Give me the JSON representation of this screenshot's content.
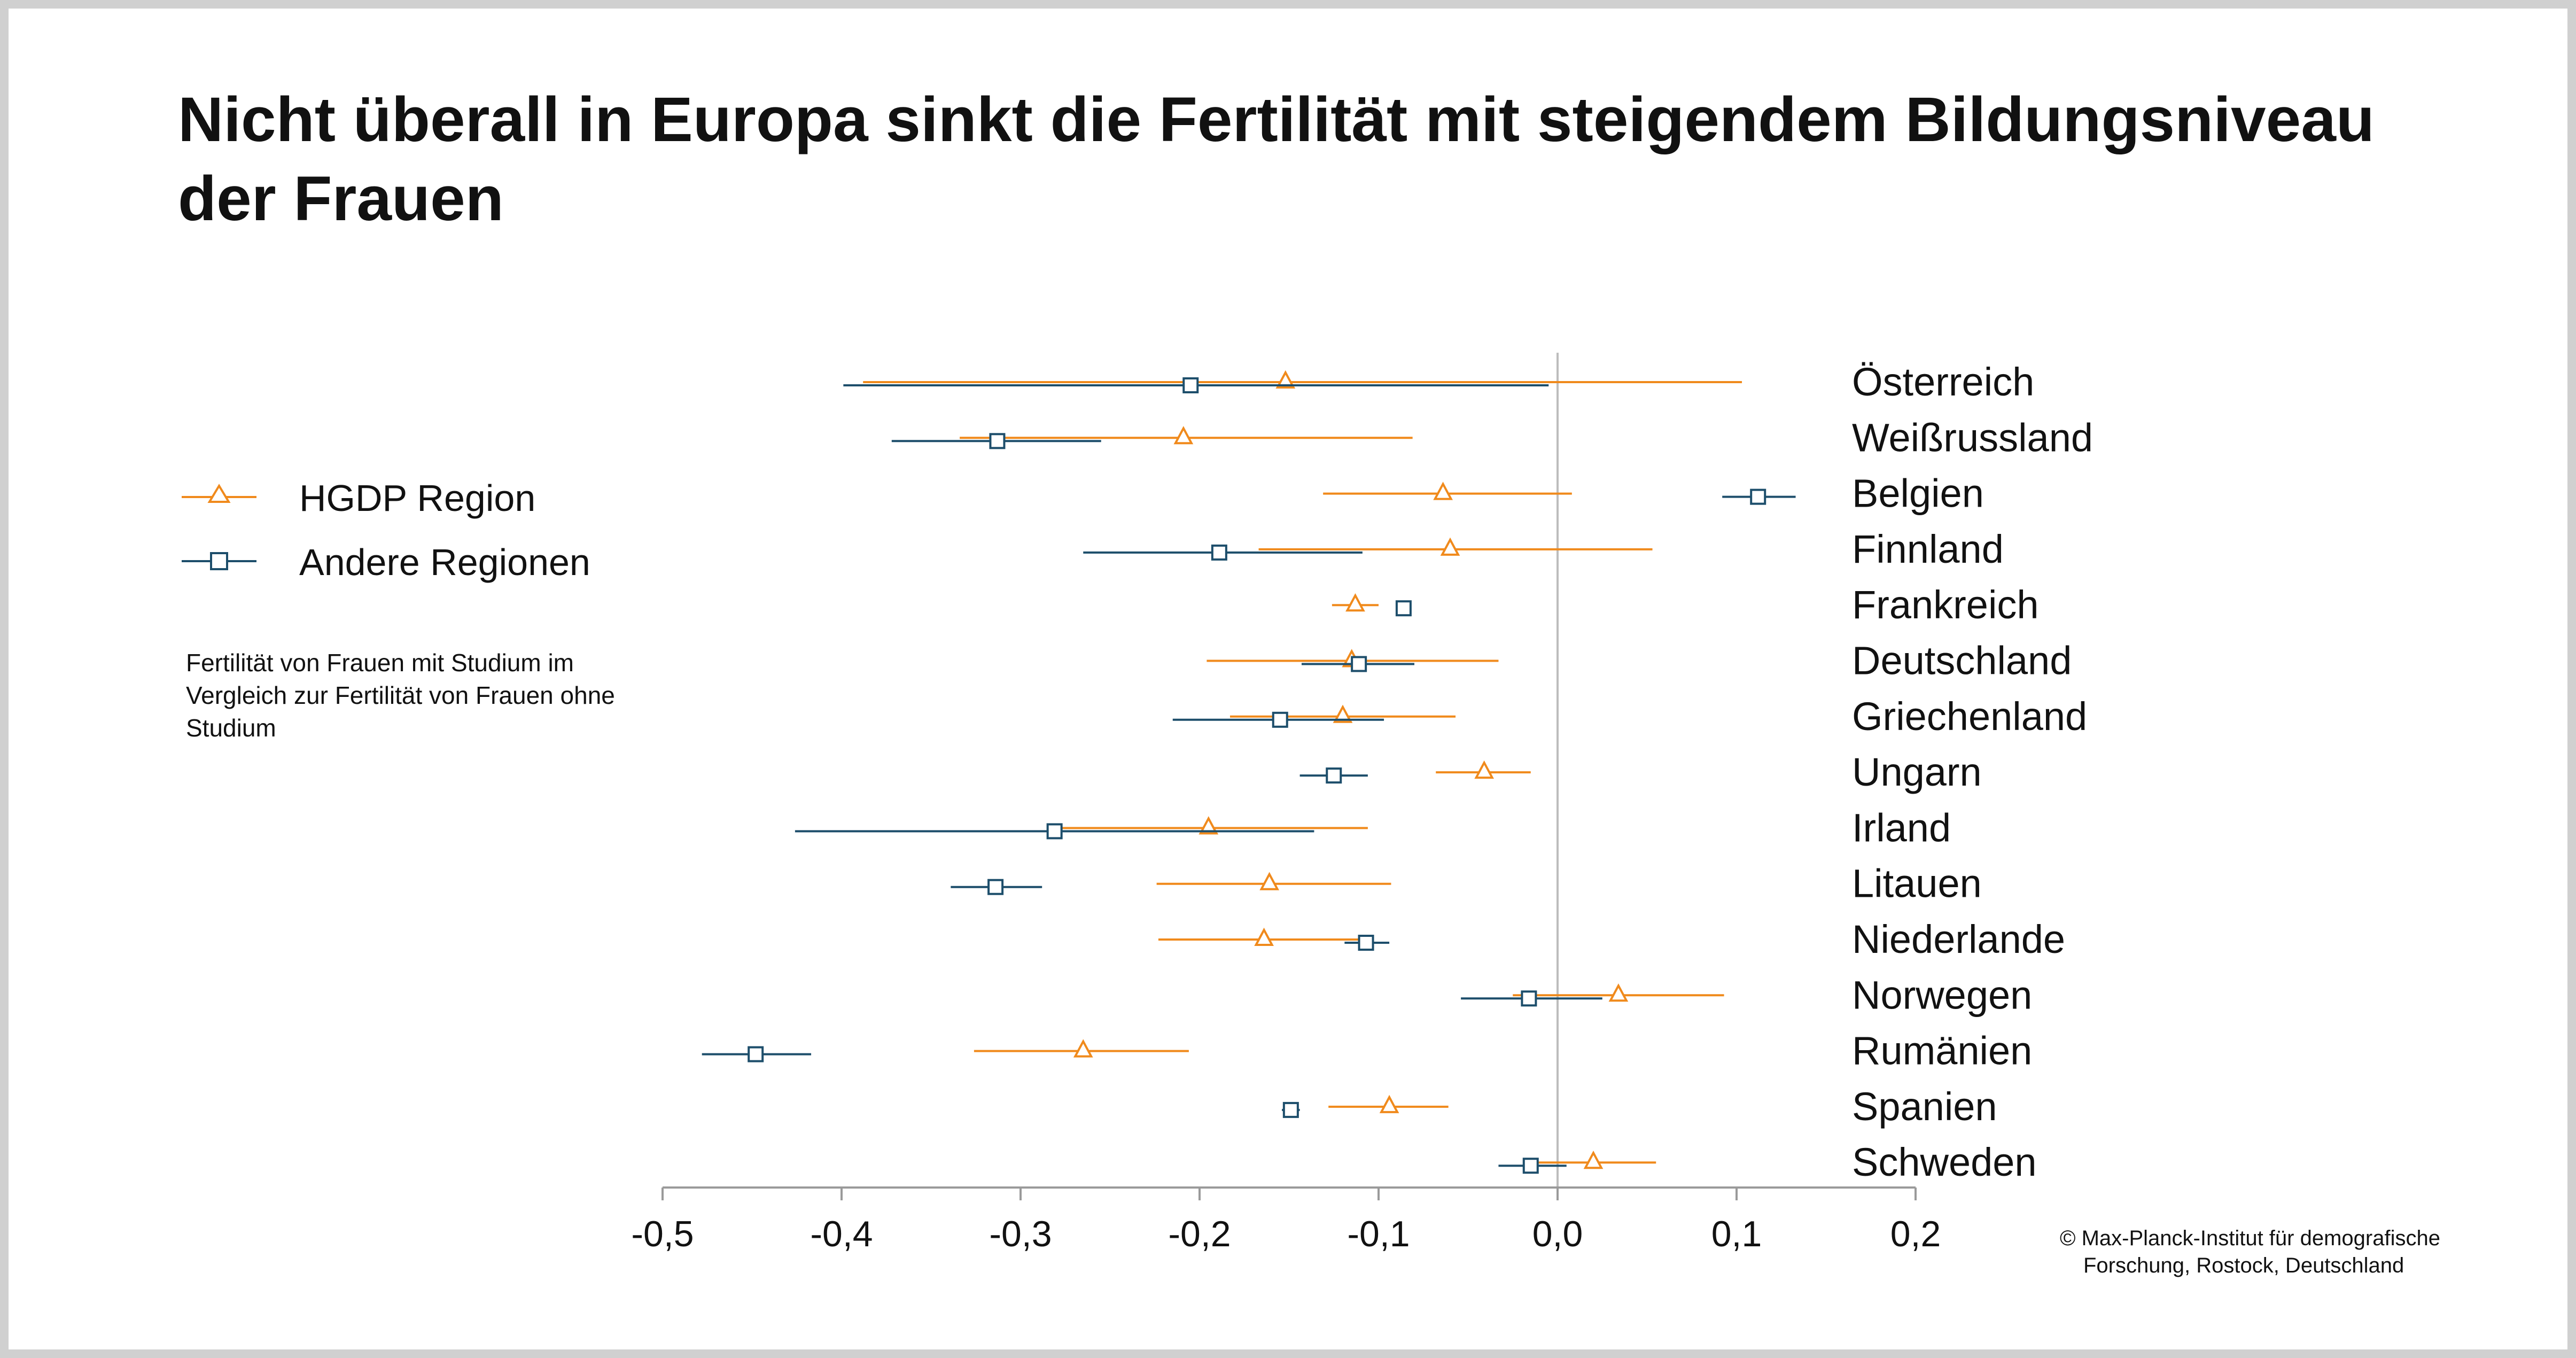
{
  "title": "Nicht überall in Europa sinkt die Fertilität mit steigendem Bildungsniveau der Frauen",
  "legend": {
    "hgdp": "HGDP Region",
    "other": "Andere Regionen"
  },
  "note": "Fertilität von Frauen mit Studium im Vergleich zur  Fertilität von Frauen ohne Studium",
  "copyright": {
    "line1": "© Max-Planck-Institut für demografische",
    "line2": "Forschung, Rostock, Deutschland"
  },
  "colors": {
    "hgdp": "#f08a1c",
    "other": "#1d4e6b",
    "zero_line": "#bdbdbd",
    "axis": "#9a9a9a"
  },
  "chart_data": {
    "type": "scatter",
    "subtype": "coefficient plot with horizontal confidence intervals",
    "xlim": [
      -0.5,
      0.2
    ],
    "xticks": [
      -0.5,
      -0.4,
      -0.3,
      -0.2,
      -0.1,
      0.0,
      0.1,
      0.2
    ],
    "xtick_labels": [
      "-0,5",
      "-0,4",
      "-0,3",
      "-0,2",
      "-0,1",
      "0,0",
      "0,1",
      "0,2"
    ],
    "reference_line_x": 0.0,
    "legend_placement": "left",
    "categories": [
      "Österreich",
      "Weißrussland",
      "Belgien",
      "Finnland",
      "Frankreich",
      "Deutschland",
      "Griechenland",
      "Ungarn",
      "Irland",
      "Litauen",
      "Niederlande",
      "Norwegen",
      "Rumänien",
      "Spanien",
      "Schweden"
    ],
    "series": [
      {
        "name": "HGDP Region",
        "marker": "triangle",
        "values": [
          -0.152,
          -0.209,
          -0.064,
          -0.06,
          -0.113,
          -0.115,
          -0.12,
          -0.041,
          -0.195,
          -0.161,
          -0.164,
          0.034,
          -0.265,
          -0.094,
          0.02
        ],
        "ci_low": [
          -0.388,
          -0.334,
          -0.131,
          -0.167,
          -0.126,
          -0.196,
          -0.183,
          -0.068,
          -0.277,
          -0.224,
          -0.223,
          -0.025,
          -0.326,
          -0.128,
          -0.012
        ],
        "ci_high": [
          0.103,
          -0.081,
          0.008,
          0.053,
          -0.1,
          -0.033,
          -0.057,
          -0.015,
          -0.106,
          -0.093,
          -0.11,
          0.093,
          -0.206,
          -0.061,
          0.055
        ]
      },
      {
        "name": "Andere Regionen",
        "marker": "square",
        "values": [
          -0.205,
          -0.313,
          0.112,
          -0.189,
          -0.086,
          -0.111,
          -0.155,
          -0.125,
          -0.281,
          -0.314,
          -0.107,
          -0.016,
          -0.448,
          -0.149,
          -0.015
        ],
        "ci_low": [
          -0.399,
          -0.372,
          0.092,
          -0.265,
          -0.09,
          -0.143,
          -0.215,
          -0.144,
          -0.426,
          -0.339,
          -0.119,
          -0.054,
          -0.478,
          -0.154,
          -0.033
        ],
        "ci_high": [
          -0.005,
          -0.255,
          0.133,
          -0.109,
          -0.082,
          -0.08,
          -0.097,
          -0.106,
          -0.136,
          -0.288,
          -0.094,
          0.025,
          -0.417,
          -0.144,
          0.005
        ]
      }
    ]
  }
}
